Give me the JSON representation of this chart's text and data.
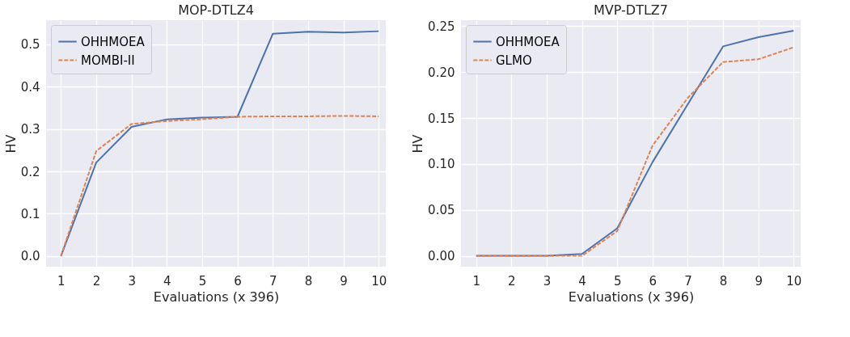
{
  "chart_data": [
    {
      "type": "line",
      "title": "MOP-DTLZ4",
      "xlabel": "Evaluations  (x 396)",
      "ylabel": "HV",
      "x": [
        1,
        2,
        3,
        4,
        5,
        6,
        7,
        8,
        9,
        10
      ],
      "series": [
        {
          "name": "OHHMOEA",
          "color": "#4c72b0",
          "line_style": "solid",
          "values": [
            0.0,
            0.221,
            0.305,
            0.323,
            0.327,
            0.329,
            0.525,
            0.53,
            0.528,
            0.531
          ]
        },
        {
          "name": "MOMBI-II",
          "color": "#dd8452",
          "line_style": "dashed",
          "values": [
            0.0,
            0.248,
            0.312,
            0.319,
            0.323,
            0.329,
            0.33,
            0.33,
            0.331,
            0.33
          ]
        }
      ],
      "xlim": [
        0.58,
        10.2
      ],
      "ylim": [
        -0.025,
        0.557
      ],
      "xticks": [
        1,
        2,
        3,
        4,
        5,
        6,
        7,
        8,
        9,
        10
      ],
      "yticks": [
        {
          "value": 0.0,
          "label": "0.0"
        },
        0.1,
        0.2,
        0.3,
        0.4,
        0.5
      ],
      "grid": true,
      "legend": "top left"
    },
    {
      "type": "line",
      "title": "MVP-DTLZ7",
      "xlabel": "Evaluations  (x 396)",
      "ylabel": "HV",
      "x": [
        1,
        2,
        3,
        4,
        5,
        6,
        7,
        8,
        9,
        10
      ],
      "series": [
        {
          "name": "OHHMOEA",
          "color": "#4c72b0",
          "line_style": "solid",
          "values": [
            0.0,
            0.0,
            0.0,
            0.002,
            0.03,
            0.102,
            0.165,
            0.228,
            0.238,
            0.245
          ]
        },
        {
          "name": "GLMO",
          "color": "#dd8452",
          "line_style": "dashed",
          "values": [
            0.0,
            0.0,
            0.0,
            0.0,
            0.027,
            0.12,
            0.172,
            0.211,
            0.214,
            0.227
          ]
        }
      ],
      "xlim": [
        0.57,
        10.2
      ],
      "ylim": [
        -0.0118,
        0.2565
      ],
      "xticks": [
        1,
        2,
        3,
        4,
        5,
        6,
        7,
        8,
        9,
        10
      ],
      "yticks": [
        {
          "value": 0.0,
          "label": "0.00"
        },
        {
          "value": 0.05,
          "label": "0.05"
        },
        {
          "value": 0.1,
          "label": "0.10"
        },
        {
          "value": 0.15,
          "label": "0.15"
        },
        {
          "value": 0.2,
          "label": "0.20"
        },
        {
          "value": 0.25,
          "label": "0.25"
        }
      ],
      "grid": true,
      "legend": "top left"
    }
  ]
}
